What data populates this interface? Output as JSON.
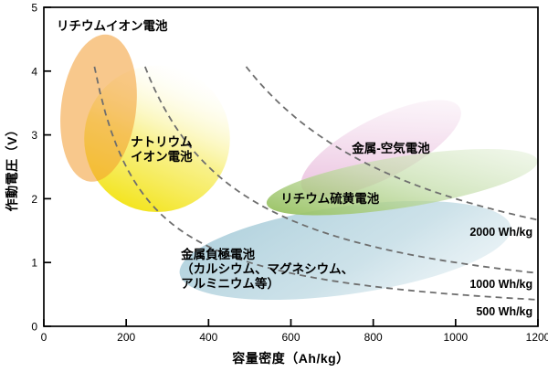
{
  "chart_data": {
    "type": "area",
    "title": "",
    "xlabel": "容量密度（Ah/kg）",
    "ylabel": "作動電圧（V）",
    "xlim": [
      0,
      1200
    ],
    "ylim": [
      0,
      5
    ],
    "x_ticks": [
      0,
      200,
      400,
      600,
      800,
      1000,
      1200
    ],
    "y_ticks": [
      0,
      1,
      2,
      3,
      4,
      5
    ],
    "grid": false,
    "legend_position": "none",
    "axis_color": "#000000",
    "iso_curve_color": "#6e6e6e",
    "curve_v_max": 4.07,
    "regions": [
      {
        "id": "sodium-ion",
        "label_lines": [
          "ナトリウム",
          "イオン電池"
        ],
        "center": {
          "x": 275,
          "y": 2.94
        },
        "radius": {
          "x": 177,
          "y": 1.15
        },
        "rotation_deg": 0,
        "x_range": [
          100,
          450
        ],
        "y_range": [
          1.8,
          4.1
        ],
        "fill": {
          "type": "linear",
          "x1": 0.3,
          "y1": 1,
          "x2": 0.72,
          "y2": 0,
          "stops": [
            {
              "offset": 0,
              "color": "#f2e20a",
              "opacity": 0.95
            },
            {
              "offset": 0.45,
              "color": "#f6ec62",
              "opacity": 0.75
            },
            {
              "offset": 1,
              "color": "#ffffff",
              "opacity": 0
            }
          ]
        },
        "label_anchor": {
          "x": 211,
          "y": 2.99,
          "align": "left"
        }
      },
      {
        "id": "lithium-ion",
        "label_lines": [
          "リチウムイオン電池"
        ],
        "center": {
          "x": 133,
          "y": 3.42
        },
        "radius": {
          "x": 91,
          "y": 1.16
        },
        "rotation_deg": 7,
        "x_range": [
          45,
          225
        ],
        "y_range": [
          2.3,
          4.6
        ],
        "fill": {
          "type": "solid",
          "color": "#f29b2e",
          "opacity": 0.55
        },
        "label_anchor": {
          "x": 31,
          "y": 4.81,
          "align": "left"
        }
      },
      {
        "id": "metal-anode",
        "label_lines": [
          "金属負極電池",
          "（カルシウム、マグネシウム、",
          "アルミニウム等）"
        ],
        "center": {
          "x": 732,
          "y": 1.19
        },
        "radius": {
          "x": 406,
          "y": 0.69
        },
        "rotation_deg": -8,
        "x_range": [
          330,
          1130
        ],
        "y_range": [
          0.4,
          2.0
        ],
        "fill": {
          "type": "linear",
          "x1": 0,
          "y1": 0.2,
          "x2": 1,
          "y2": 0.8,
          "stops": [
            {
              "offset": 0,
              "color": "#a9cdda",
              "opacity": 0.9
            },
            {
              "offset": 0.6,
              "color": "#bcd8e2",
              "opacity": 0.75
            },
            {
              "offset": 1,
              "color": "#d9e9ef",
              "opacity": 0.55
            }
          ]
        },
        "label_anchor": {
          "x": 333,
          "y": 1.23,
          "align": "left"
        }
      },
      {
        "id": "metal-air",
        "label_lines": [
          "金属-空気電池"
        ],
        "center": {
          "x": 819,
          "y": 2.79
        },
        "radius": {
          "x": 215,
          "y": 0.47
        },
        "rotation_deg": -27,
        "x_range": [
          610,
          1030
        ],
        "y_range": [
          2.1,
          3.5
        ],
        "fill": {
          "type": "linear",
          "x1": 0,
          "y1": 0.8,
          "x2": 1,
          "y2": 0.2,
          "stops": [
            {
              "offset": 0,
              "color": "#e7b4d8",
              "opacity": 0.9
            },
            {
              "offset": 0.55,
              "color": "#f0d3e8",
              "opacity": 0.7
            },
            {
              "offset": 1,
              "color": "#f9eef6",
              "opacity": 0.45
            }
          ]
        },
        "label_anchor": {
          "x": 748,
          "y": 2.89,
          "align": "left"
        }
      },
      {
        "id": "lithium-sulfur",
        "label_lines": [
          "リチウム硫黄電池"
        ],
        "center": {
          "x": 870,
          "y": 2.26
        },
        "radius": {
          "x": 333,
          "y": 0.4
        },
        "rotation_deg": -9,
        "x_range": [
          540,
          1200
        ],
        "y_range": [
          1.85,
          2.7
        ],
        "fill": {
          "type": "linear",
          "x1": 0,
          "y1": 0.7,
          "x2": 1,
          "y2": 0.3,
          "stops": [
            {
              "offset": 0,
              "color": "#95c05d",
              "opacity": 0.95
            },
            {
              "offset": 0.5,
              "color": "#c0dba4",
              "opacity": 0.7
            },
            {
              "offset": 1,
              "color": "#e2efd6",
              "opacity": 0.5
            }
          ]
        },
        "label_anchor": {
          "x": 575,
          "y": 2.11,
          "align": "left"
        }
      }
    ],
    "iso_energy_curves": [
      {
        "id": "500",
        "label": "500 Wh/kg",
        "wh_per_kg": 500,
        "label_anchor": {
          "x": 1187,
          "y": 0.33,
          "align": "right"
        }
      },
      {
        "id": "1000",
        "label": "1000 Wh/kg",
        "wh_per_kg": 1000,
        "label_anchor": {
          "x": 1187,
          "y": 0.76,
          "align": "right"
        }
      },
      {
        "id": "2000",
        "label": "2000 Wh/kg",
        "wh_per_kg": 2000,
        "label_anchor": {
          "x": 1187,
          "y": 1.58,
          "align": "right"
        }
      }
    ]
  }
}
